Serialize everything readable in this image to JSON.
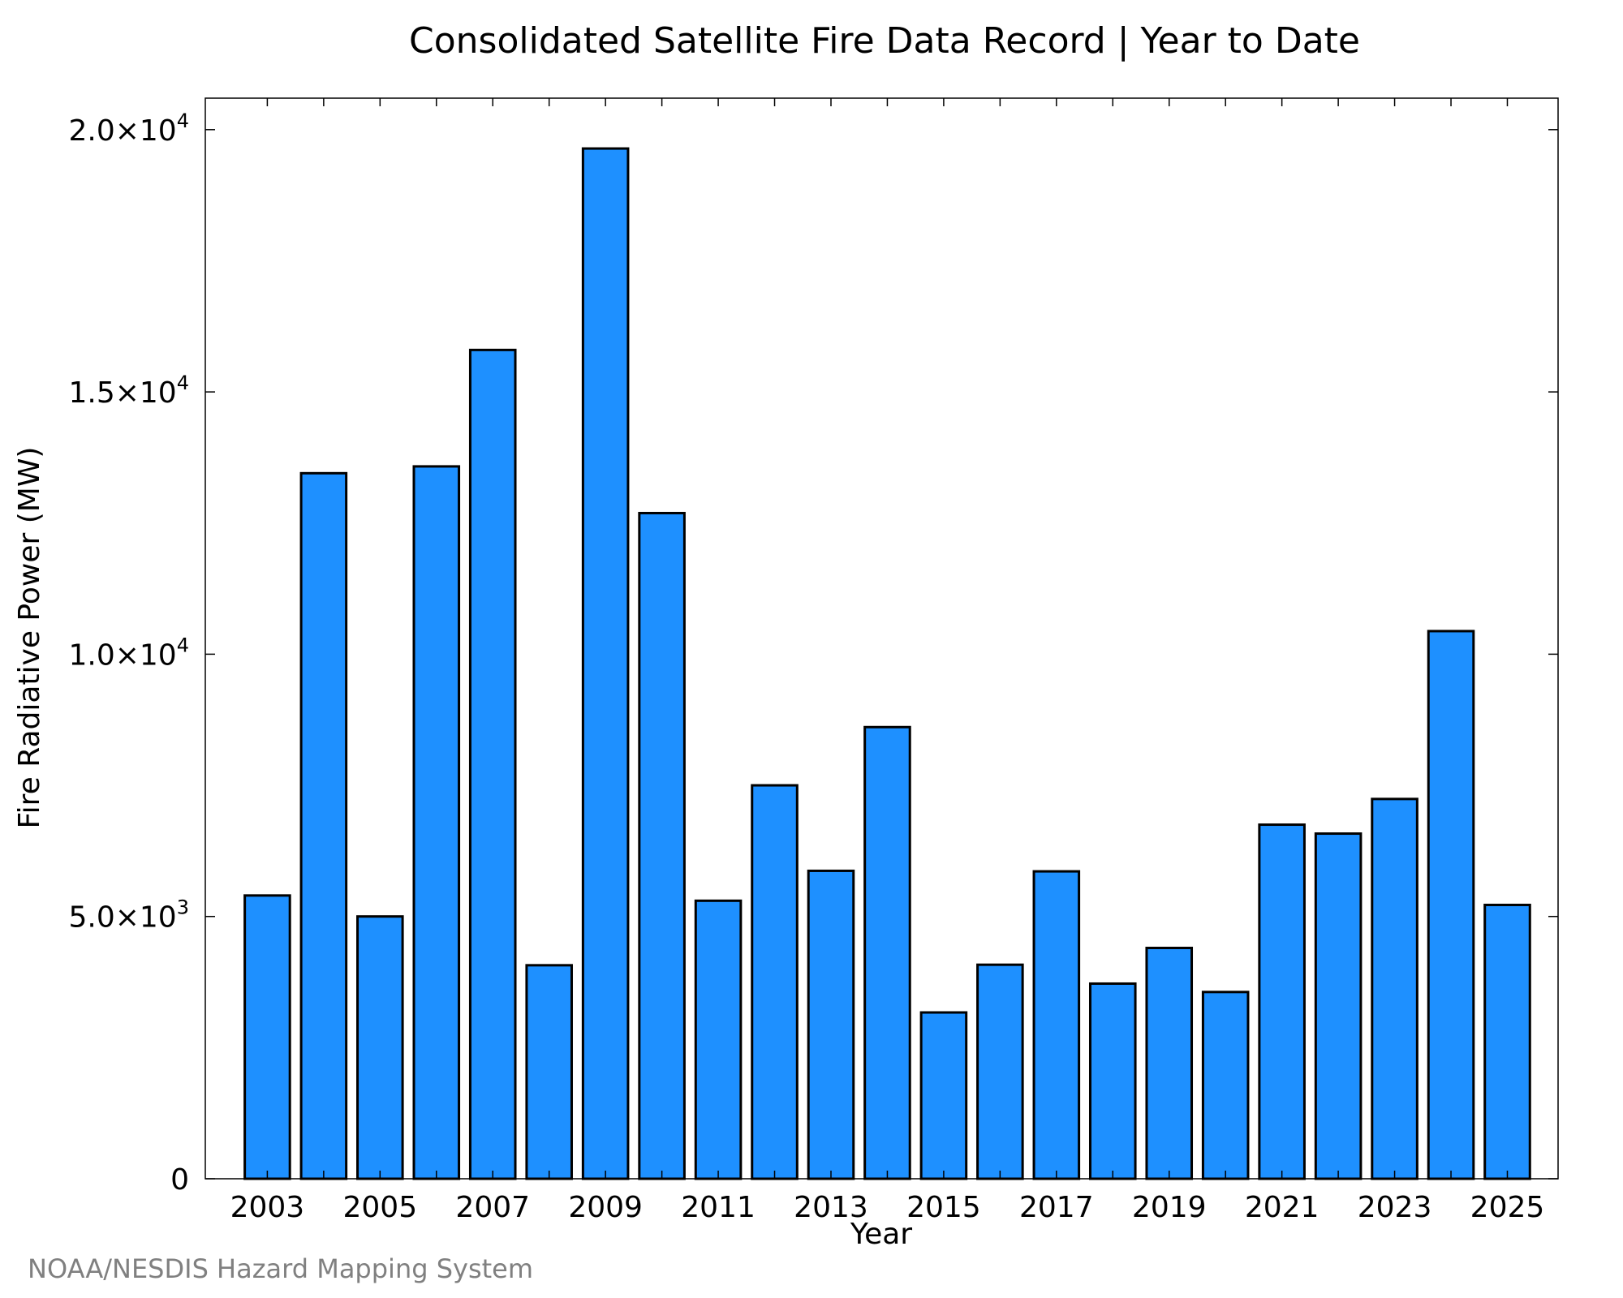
{
  "chart_data": {
    "type": "bar",
    "title": "Consolidated Satellite Fire Data Record | Year to Date",
    "xlabel": "Year",
    "ylabel": "Fire Radiative Power (MW)",
    "categories": [
      2003,
      2004,
      2005,
      2006,
      2007,
      2008,
      2009,
      2010,
      2011,
      2012,
      2013,
      2014,
      2015,
      2016,
      2017,
      2018,
      2019,
      2020,
      2021,
      2022,
      2023,
      2024,
      2025
    ],
    "values": [
      5400,
      13450,
      5000,
      13580,
      15800,
      4070,
      19640,
      12690,
      5300,
      7500,
      5870,
      8610,
      3170,
      4080,
      5860,
      3720,
      4400,
      3560,
      6750,
      6580,
      7240,
      10440,
      5220
    ],
    "x_tick_labels": [
      "2003",
      "2005",
      "2007",
      "2009",
      "2011",
      "2013",
      "2015",
      "2017",
      "2019",
      "2021",
      "2023",
      "2025"
    ],
    "y_ticks": [
      {
        "value": 0,
        "mantissa": "0",
        "exponent": ""
      },
      {
        "value": 5000,
        "mantissa": "5.0×10",
        "exponent": "3"
      },
      {
        "value": 10000,
        "mantissa": "1.0×10",
        "exponent": "4"
      },
      {
        "value": 15000,
        "mantissa": "1.5×10",
        "exponent": "4"
      },
      {
        "value": 20000,
        "mantissa": "2.0×10",
        "exponent": "4"
      }
    ],
    "xlim": [
      2001.9,
      2025.9
    ],
    "ylim": [
      0,
      20600
    ],
    "bar_color": "#1e90ff",
    "bar_edge_color": "#000000",
    "grid": false,
    "credit": "NOAA/NESDIS Hazard Mapping System"
  }
}
